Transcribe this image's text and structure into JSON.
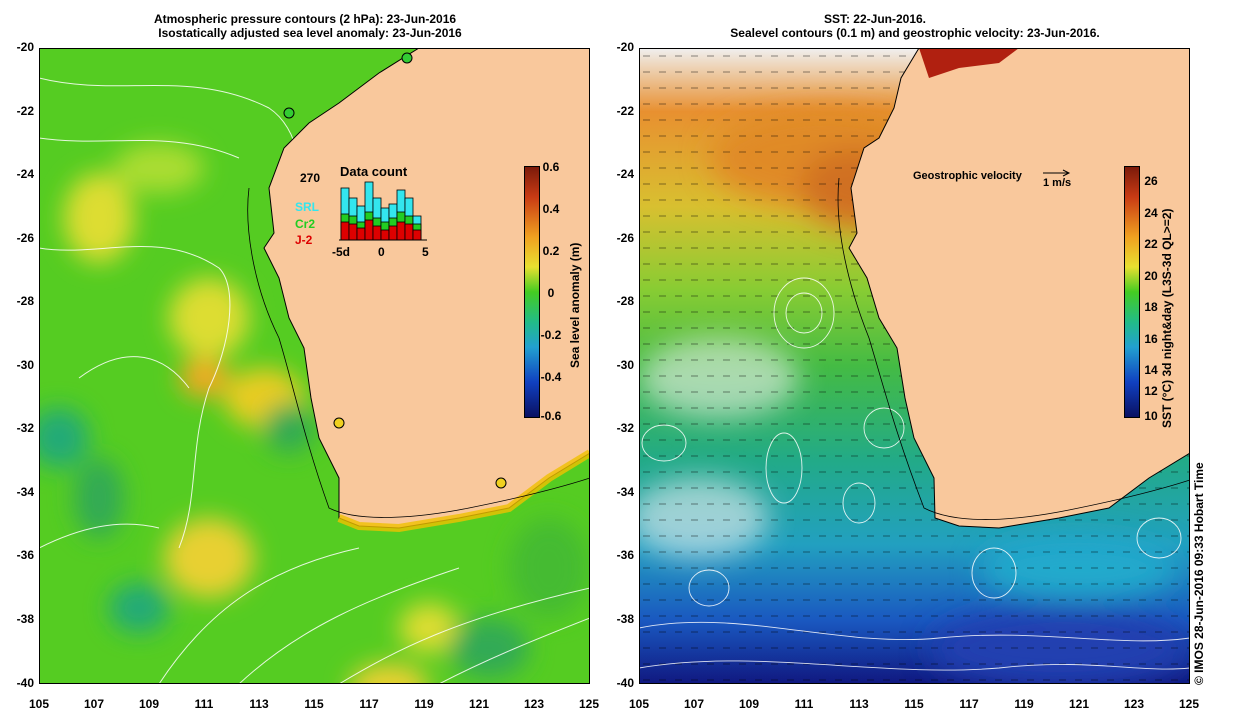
{
  "left_panel": {
    "title_line1": "Atmospheric pressure contours (2 hPa): 23-Jun-2016",
    "title_line2": "Isostatically adjusted sea level anomaly: 23-Jun-2016",
    "y_ticks": [
      "-20",
      "-22",
      "-24",
      "-26",
      "-28",
      "-30",
      "-32",
      "-34",
      "-36",
      "-38",
      "-40"
    ],
    "x_ticks": [
      "105",
      "107",
      "109",
      "111",
      "113",
      "115",
      "117",
      "119",
      "121",
      "123",
      "125"
    ],
    "colorbar": {
      "label": "Sea level anomaly (m)",
      "ticks": [
        "0.6",
        "0.4",
        "0.2",
        "0",
        "-0.2",
        "-0.4",
        "-0.6"
      ]
    },
    "inset": {
      "title": "Data count",
      "count": "270",
      "legend": [
        {
          "name": "SRL",
          "color": "#33e6ee"
        },
        {
          "name": "Cr2",
          "color": "#22cc22"
        },
        {
          "name": "J-2",
          "color": "#dd0000"
        }
      ],
      "x_ticks": [
        "-5d",
        "0",
        "5"
      ]
    }
  },
  "right_panel": {
    "title_line1": "SST: 22-Jun-2016.",
    "title_line2": "Sealevel contours (0.1 m) and geostrophic velocity: 23-Jun-2016.",
    "y_ticks": [
      "-20",
      "-22",
      "-24",
      "-26",
      "-28",
      "-30",
      "-32",
      "-34",
      "-36",
      "-38",
      "-40"
    ],
    "x_ticks": [
      "105",
      "107",
      "109",
      "111",
      "113",
      "115",
      "117",
      "119",
      "121",
      "123",
      "125"
    ],
    "colorbar": {
      "label": "SST (°C) 3d night&day (L3S-3d QL>=2)",
      "ticks": [
        "26",
        "24",
        "22",
        "20",
        "18",
        "16",
        "14",
        "12",
        "10"
      ]
    },
    "velocity_legend": {
      "label": "Geostrophic velocity",
      "scale": "1 m/s"
    }
  },
  "credit": "© IMOS 28-Jun-2016 09:33 Hobart Time",
  "colors": {
    "land": "#f9c89c",
    "coast": "#000000"
  }
}
